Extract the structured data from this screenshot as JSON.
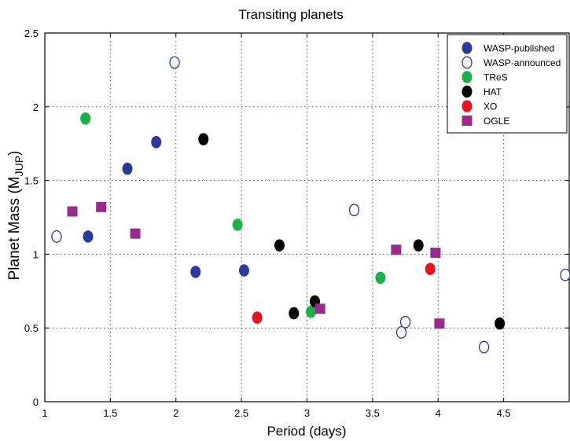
{
  "chart_data": {
    "type": "scatter",
    "title": "Transiting planets",
    "xlabel": "Period (days)",
    "ylabel": "Planet Mass (M",
    "ylabel_sub": "JUP",
    "ylabel_close": ")",
    "xlim": [
      1,
      5
    ],
    "ylim": [
      0,
      2.5
    ],
    "xticks": [
      1,
      1.5,
      2,
      2.5,
      3,
      3.5,
      4,
      4.5
    ],
    "xtick_labels": [
      "1",
      "1.5",
      "2",
      "2.5",
      "3",
      "3.5",
      "4",
      "4.5"
    ],
    "yticks": [
      0,
      0.5,
      1,
      1.5,
      2,
      2.5
    ],
    "ytick_labels": [
      "0",
      "0.5",
      "1",
      "1.5",
      "2",
      "2.5"
    ],
    "grid": true,
    "legend_position": "top-right",
    "series": [
      {
        "name": "WASP-published",
        "marker": "circle",
        "filled": true,
        "color": "#2b3a9c",
        "points": [
          {
            "x": 1.33,
            "y": 1.12
          },
          {
            "x": 1.63,
            "y": 1.58
          },
          {
            "x": 1.85,
            "y": 1.76
          },
          {
            "x": 2.15,
            "y": 0.88
          },
          {
            "x": 2.52,
            "y": 0.89
          }
        ]
      },
      {
        "name": "WASP-announced",
        "marker": "circle",
        "filled": false,
        "color": "#2b3a9c",
        "points": [
          {
            "x": 1.09,
            "y": 1.12
          },
          {
            "x": 1.99,
            "y": 2.3
          },
          {
            "x": 3.36,
            "y": 1.3
          },
          {
            "x": 3.72,
            "y": 0.47
          },
          {
            "x": 3.75,
            "y": 0.54
          },
          {
            "x": 4.35,
            "y": 0.37
          },
          {
            "x": 4.97,
            "y": 0.86
          }
        ]
      },
      {
        "name": "TReS",
        "marker": "circle",
        "filled": true,
        "color": "#18b14a",
        "points": [
          {
            "x": 1.31,
            "y": 1.92
          },
          {
            "x": 2.47,
            "y": 1.2
          },
          {
            "x": 3.03,
            "y": 0.61
          },
          {
            "x": 3.56,
            "y": 0.84
          }
        ]
      },
      {
        "name": "HAT",
        "marker": "circle",
        "filled": true,
        "color": "#000000",
        "points": [
          {
            "x": 2.21,
            "y": 1.78
          },
          {
            "x": 2.79,
            "y": 1.06
          },
          {
            "x": 2.9,
            "y": 0.6
          },
          {
            "x": 3.06,
            "y": 0.68
          },
          {
            "x": 3.85,
            "y": 1.06
          },
          {
            "x": 4.47,
            "y": 0.53
          }
        ]
      },
      {
        "name": "XO",
        "marker": "circle",
        "filled": true,
        "color": "#e8131c",
        "points": [
          {
            "x": 2.62,
            "y": 0.57
          },
          {
            "x": 3.94,
            "y": 0.9
          }
        ]
      },
      {
        "name": "OGLE",
        "marker": "square",
        "filled": true,
        "color": "#9b2a8e",
        "points": [
          {
            "x": 1.21,
            "y": 1.29
          },
          {
            "x": 1.43,
            "y": 1.32
          },
          {
            "x": 1.69,
            "y": 1.14
          },
          {
            "x": 3.1,
            "y": 0.63
          },
          {
            "x": 3.68,
            "y": 1.03
          },
          {
            "x": 3.98,
            "y": 1.01
          },
          {
            "x": 4.01,
            "y": 0.53
          }
        ]
      }
    ]
  }
}
